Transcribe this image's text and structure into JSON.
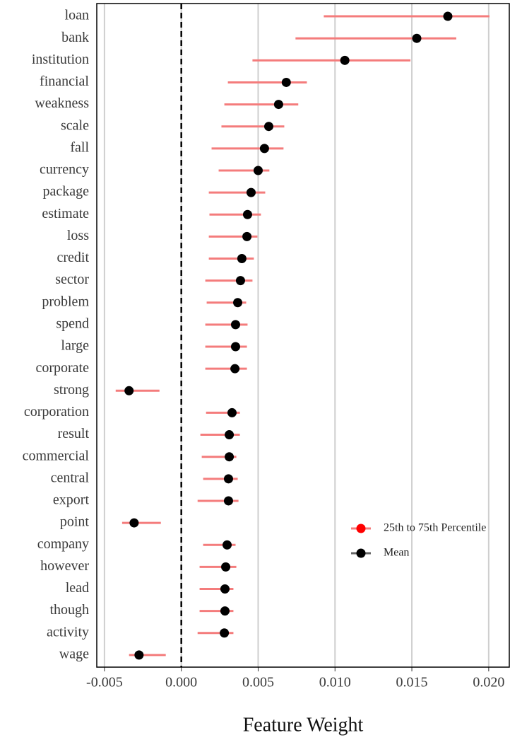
{
  "chart_data": {
    "type": "interval-dot",
    "x_label": "Feature Weight",
    "categories": [
      "loan",
      "bank",
      "institution",
      "financial",
      "weakness",
      "scale",
      "fall",
      "currency",
      "package",
      "estimate",
      "loss",
      "credit",
      "sector",
      "problem",
      "spend",
      "large",
      "corporate",
      "strong",
      "corporation",
      "result",
      "commercial",
      "central",
      "export",
      "point",
      "company",
      "however",
      "lead",
      "though",
      "activity",
      "wage"
    ],
    "series": [
      {
        "name": "25th to 75th Percentile",
        "color": "#f47c7c",
        "low": [
          0.00927,
          0.00743,
          0.00463,
          0.00303,
          0.0028,
          0.00261,
          0.00197,
          0.00243,
          0.00179,
          0.00183,
          0.00179,
          0.00179,
          0.00156,
          0.00165,
          0.00156,
          0.00156,
          0.00156,
          -0.00427,
          0.00161,
          0.00124,
          0.00133,
          0.00142,
          0.00106,
          -0.00385,
          0.00142,
          0.00119,
          0.00119,
          0.00119,
          0.00106,
          -0.0034
        ],
        "high": [
          0.02005,
          0.01789,
          0.01491,
          0.00817,
          0.00761,
          0.0067,
          0.00665,
          0.00573,
          0.00546,
          0.00518,
          0.00495,
          0.00472,
          0.00463,
          0.00422,
          0.00431,
          0.00427,
          0.00427,
          -0.00142,
          0.00381,
          0.00381,
          0.00358,
          0.00367,
          0.00372,
          -0.00133,
          0.00353,
          0.00358,
          0.00339,
          0.00339,
          0.00339,
          -0.00101
        ]
      },
      {
        "name": "Mean",
        "color": "#000000",
        "values": [
          0.01734,
          0.01532,
          0.01064,
          0.00683,
          0.00633,
          0.00569,
          0.00541,
          0.005,
          0.00454,
          0.00431,
          0.00427,
          0.00394,
          0.00385,
          0.00367,
          0.00353,
          0.00353,
          0.00349,
          -0.0034,
          0.0033,
          0.00312,
          0.00312,
          0.00307,
          0.00307,
          -0.00307,
          0.00298,
          0.00289,
          0.00284,
          0.00284,
          0.0028,
          -0.00275
        ]
      }
    ],
    "xlim": [
      -0.0055,
      0.02134
    ],
    "xticks": [
      {
        "value": -0.005,
        "label": "-0.005"
      },
      {
        "value": 0,
        "label": "0.000"
      },
      {
        "value": 0.005,
        "label": "0.005"
      },
      {
        "value": 0.01,
        "label": "0.010"
      },
      {
        "value": 0.015,
        "label": "0.015"
      },
      {
        "value": 0.02,
        "label": "0.020"
      }
    ],
    "grid": true,
    "vline": 0,
    "legend": "right"
  }
}
